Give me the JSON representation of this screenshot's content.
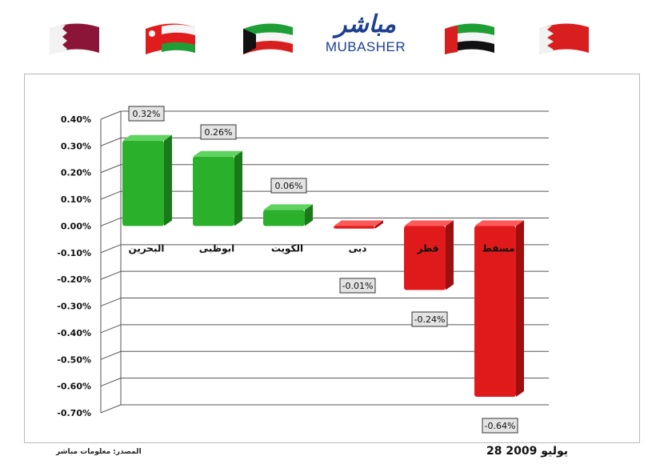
{
  "header": {
    "logo_ar": "مباشر",
    "logo_en": "MUBASHER",
    "flags": [
      "qatar-flag",
      "oman-flag",
      "kuwait-flag",
      "uae-flag",
      "bahrain-flag"
    ]
  },
  "colors": {
    "positive": "#2bb02b",
    "positive_top": "#5fd35f",
    "positive_side": "#1a7a1a",
    "negative": "#e01a1a",
    "negative_top": "#ff5a5a",
    "negative_side": "#9e0f0f",
    "grid": "#555555"
  },
  "chart_data": {
    "type": "bar",
    "categories": [
      "البحرين",
      "ابوظبى",
      "الكويت",
      "دبى",
      "قطر",
      "مسقط"
    ],
    "values": [
      0.32,
      0.26,
      0.06,
      -0.01,
      -0.24,
      -0.64
    ],
    "data_labels": [
      "0.32%",
      "0.26%",
      "0.06%",
      "-0.01%",
      "-0.24%",
      "-0.64%"
    ],
    "y_ticks": [
      "0.40%",
      "0.30%",
      "0.20%",
      "0.10%",
      "0.00%",
      "-0.10%",
      "-0.20%",
      "-0.30%",
      "-0.40%",
      "-0.50%",
      "-0.60%",
      "-0.70%"
    ],
    "ylim": [
      -0.7,
      0.4
    ],
    "grid": true,
    "legend": "none"
  },
  "footer": {
    "source": "المصدر: معلومات مباشر",
    "date": "28 يوليو 2009"
  }
}
